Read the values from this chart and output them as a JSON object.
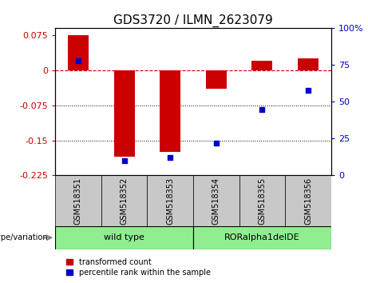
{
  "title": "GDS3720 / ILMN_2623079",
  "samples": [
    "GSM518351",
    "GSM518352",
    "GSM518353",
    "GSM518354",
    "GSM518355",
    "GSM518356"
  ],
  "red_bars": [
    0.075,
    -0.185,
    -0.175,
    -0.04,
    0.02,
    0.025
  ],
  "blue_dots_pct": [
    78,
    10,
    12,
    22,
    45,
    58
  ],
  "ylim_left": [
    -0.225,
    0.09
  ],
  "ylim_right": [
    0,
    100
  ],
  "yticks_left": [
    0.075,
    0,
    -0.075,
    -0.15,
    -0.225
  ],
  "yticks_right": [
    100,
    75,
    50,
    25,
    0
  ],
  "dotted_lines": [
    -0.075,
    -0.15
  ],
  "group_boundaries": [
    [
      0,
      2,
      "wild type"
    ],
    [
      3,
      5,
      "RORalpha1delDE"
    ]
  ],
  "genotype_label": "genotype/variation",
  "legend_items": [
    {
      "label": "transformed count",
      "color": "#CC0000"
    },
    {
      "label": "percentile rank within the sample",
      "color": "#0000CC"
    }
  ],
  "bar_color": "#CC0000",
  "dot_color": "#0000CC",
  "bar_width": 0.45,
  "group_color": "#90EE90",
  "sample_box_color": "#C8C8C8",
  "title_fontsize": 11,
  "tick_fontsize": 8,
  "sample_fontsize": 7,
  "group_fontsize": 8,
  "legend_fontsize": 7,
  "genotype_fontsize": 7
}
